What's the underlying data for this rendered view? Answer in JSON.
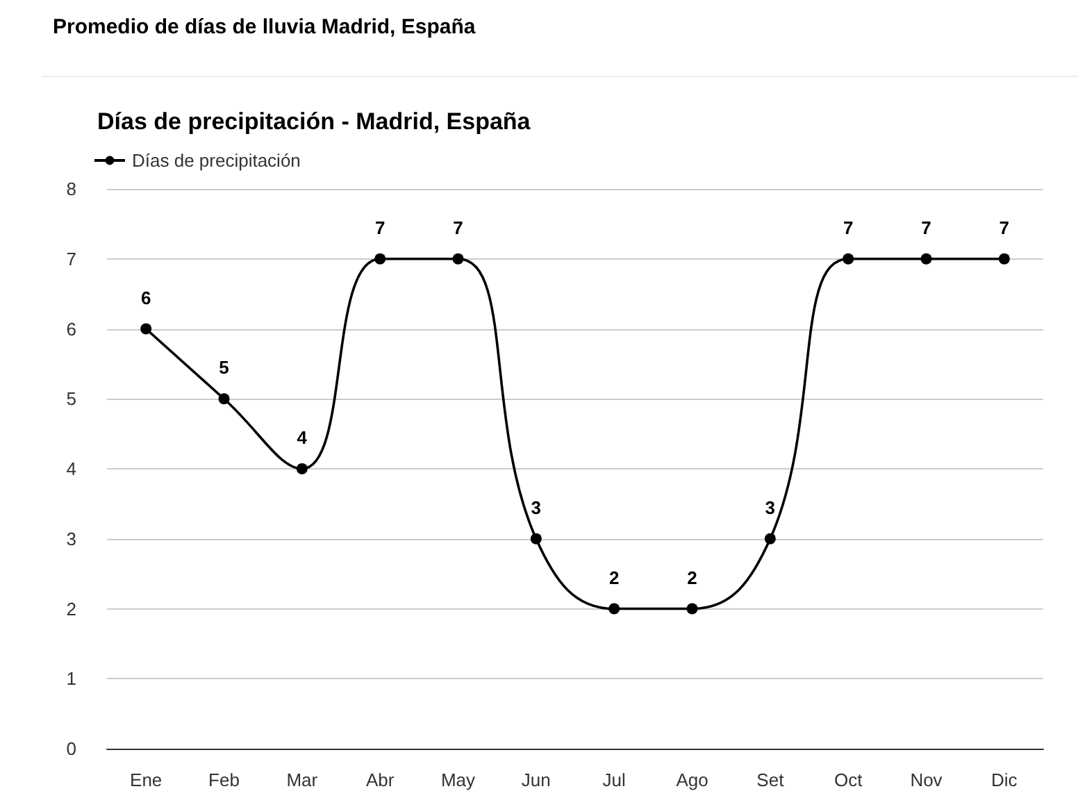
{
  "chart_data": {
    "type": "line",
    "title": "Promedio de días de lluvia Madrid, España",
    "subtitle": "Días de precipitación - Madrid, España",
    "categories": [
      "Ene",
      "Feb",
      "Mar",
      "Abr",
      "May",
      "Jun",
      "Jul",
      "Ago",
      "Set",
      "Oct",
      "Nov",
      "Dic"
    ],
    "series": [
      {
        "name": "Días de precipitación",
        "color": "#000000",
        "values": [
          6,
          5,
          4,
          7,
          7,
          3,
          2,
          2,
          3,
          7,
          7,
          7
        ]
      }
    ],
    "ylim": [
      0,
      8
    ],
    "yticks": [
      0,
      1,
      2,
      3,
      4,
      5,
      6,
      7,
      8
    ],
    "grid": "y",
    "legend": "top left",
    "marker": "circle",
    "line_style": "solid",
    "data_labels": true
  }
}
